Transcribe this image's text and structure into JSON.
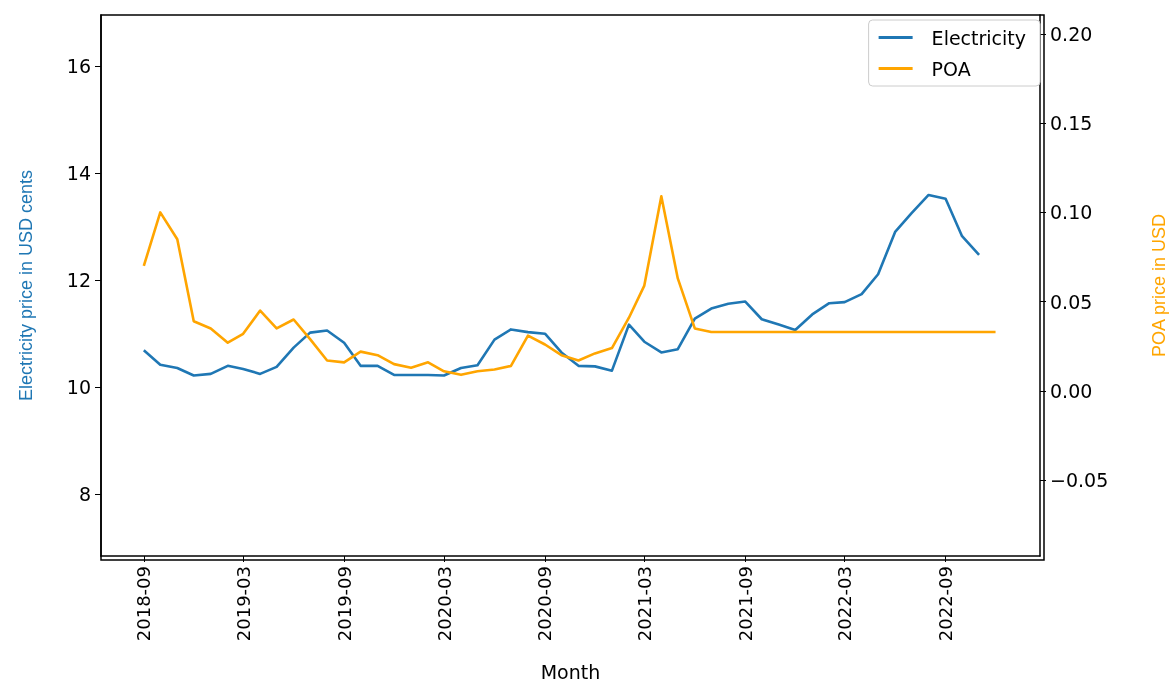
{
  "chart_data": {
    "type": "line",
    "xlabel": "Month",
    "ylabel": "Electricity price in USD cents",
    "y2label": "POA price in USD",
    "x": [
      "2018-09",
      "2018-10",
      "2018-11",
      "2018-12",
      "2019-01",
      "2019-02",
      "2019-03",
      "2019-04",
      "2019-05",
      "2019-06",
      "2019-07",
      "2019-08",
      "2019-09",
      "2019-10",
      "2019-11",
      "2019-12",
      "2020-01",
      "2020-02",
      "2020-03",
      "2020-04",
      "2020-05",
      "2020-06",
      "2020-07",
      "2020-08",
      "2020-09",
      "2020-10",
      "2020-11",
      "2020-12",
      "2021-01",
      "2021-02",
      "2021-03",
      "2021-04",
      "2021-05",
      "2021-06",
      "2021-07",
      "2021-08",
      "2021-09",
      "2021-10",
      "2021-11",
      "2021-12",
      "2022-01",
      "2022-02",
      "2022-03",
      "2022-04",
      "2022-05",
      "2022-06",
      "2022-07",
      "2022-08",
      "2022-09",
      "2022-10",
      "2022-11",
      "2022-12"
    ],
    "series": [
      {
        "name": "Electricity",
        "color": "#1f77b4",
        "values": [
          10.69,
          10.42,
          10.36,
          10.22,
          10.25,
          10.4,
          10.34,
          10.25,
          10.38,
          10.74,
          11.02,
          11.06,
          10.83,
          10.4,
          10.4,
          10.23,
          10.23,
          10.23,
          10.22,
          10.36,
          10.41,
          10.89,
          11.08,
          11.03,
          11.0,
          10.65,
          10.4,
          10.39,
          10.31,
          11.17,
          10.85,
          10.65,
          10.71,
          11.28,
          11.47,
          11.56,
          11.6,
          11.27,
          11.17,
          11.07,
          11.36,
          11.57,
          11.59,
          11.74,
          12.11,
          12.9,
          13.25,
          13.59,
          13.52,
          12.82,
          12.47,
          null
        ]
      },
      {
        "name": "POA",
        "color": "#ffa500",
        "axis": "y2",
        "values": [
          0.07,
          0.1,
          0.085,
          0.039,
          0.035,
          0.027,
          0.032,
          0.045,
          0.035,
          0.04,
          0.029,
          0.017,
          0.016,
          0.022,
          0.02,
          0.015,
          0.013,
          0.016,
          0.011,
          0.009,
          0.011,
          0.012,
          0.014,
          0.031,
          0.026,
          0.02,
          0.017,
          0.021,
          0.024,
          0.041,
          0.059,
          0.109,
          0.063,
          0.035,
          0.033,
          0.033,
          0.033,
          0.033,
          0.033,
          0.033,
          0.033,
          0.033,
          0.033,
          0.033,
          0.033,
          0.033,
          0.033,
          0.033,
          0.033,
          0.033,
          0.033,
          0.033
        ]
      }
    ],
    "xlim": [
      "2018-06-15",
      "2023-02-20"
    ],
    "xticks": [
      "2018-09",
      "2019-03",
      "2019-09",
      "2020-03",
      "2020-09",
      "2021-03",
      "2021-09",
      "2022-03",
      "2022-09"
    ],
    "ylim": [
      6.85,
      16.95
    ],
    "yticks": [
      8,
      10,
      12,
      14,
      16
    ],
    "y2lim": [
      -0.0925,
      0.2106
    ],
    "y2ticks": [
      {
        "value": -0.05,
        "label": "−0.05"
      },
      {
        "value": 0,
        "label": "0.00"
      },
      {
        "value": 0.05,
        "label": "0.05"
      },
      {
        "value": 0.1,
        "label": "0.10"
      },
      {
        "value": 0.15,
        "label": "0.15"
      },
      {
        "value": 0.2,
        "label": "0.20"
      }
    ],
    "legend": "top right",
    "grid": false,
    "marker": "none",
    "line_style": "solid"
  }
}
